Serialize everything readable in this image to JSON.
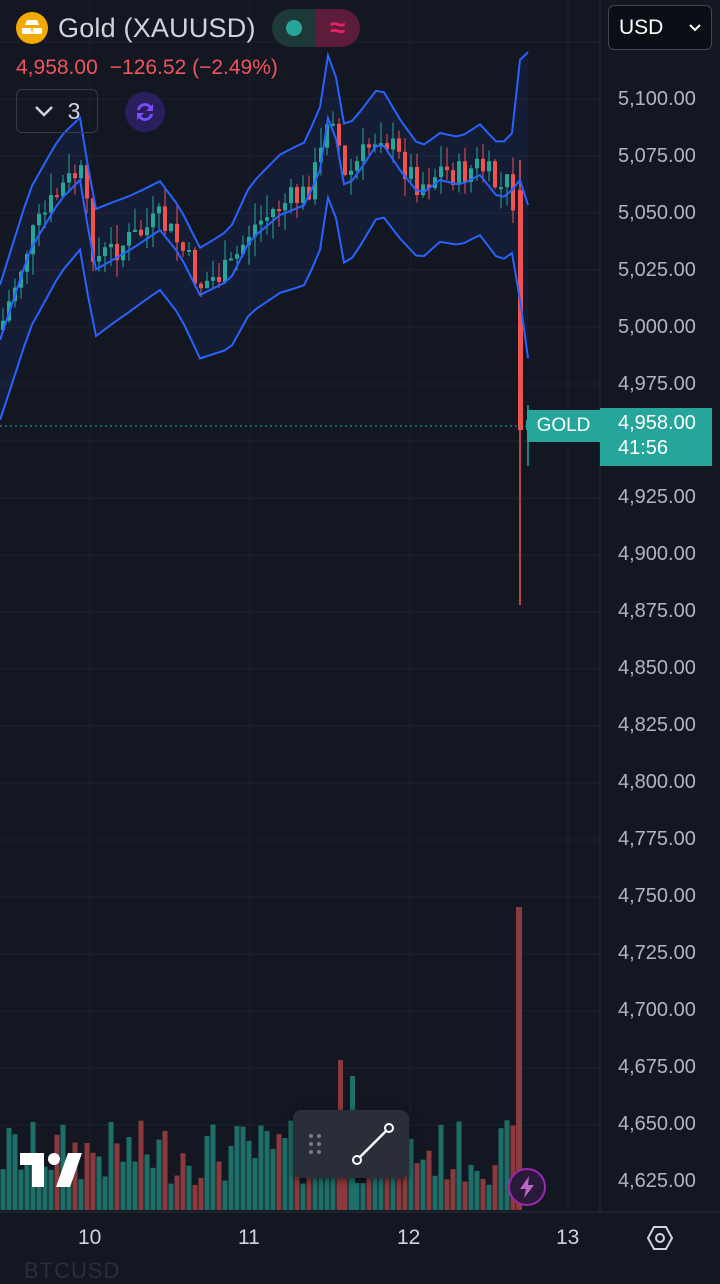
{
  "header": {
    "symbol_title": "Gold (XAUUSD)",
    "last_price": "4,958.00",
    "change": "−126.52 (−2.49%)",
    "indicator_count": "3",
    "currency": "USD"
  },
  "price_axis": {
    "labels": [
      "5,100.00",
      "5,075.00",
      "5,050.00",
      "5,025.00",
      "5,000.00",
      "4,975.00",
      "4,925.00",
      "4,900.00",
      "4,875.00",
      "4,850.00",
      "4,825.00",
      "4,800.00",
      "4,775.00",
      "4,750.00",
      "4,725.00",
      "4,700.00",
      "4,675.00",
      "4,650.00",
      "4,625.00"
    ]
  },
  "time_axis": {
    "labels": [
      "10",
      "11",
      "12",
      "13"
    ]
  },
  "last_price_tag": {
    "label": "GOLD",
    "price": "4,958.00",
    "countdown": "41:56"
  },
  "bottom_text": "BTCUSD",
  "colors": {
    "up": "#26a69a",
    "down": "#ef5350",
    "bands": "#2962ff",
    "background": "#131722"
  },
  "icons": [
    "gold-logo-icon",
    "chevron-down-icon",
    "sync-icon",
    "drag-handle-icon",
    "trend-line-icon",
    "tradingview-logo-icon",
    "lightning-icon",
    "settings-icon"
  ]
}
